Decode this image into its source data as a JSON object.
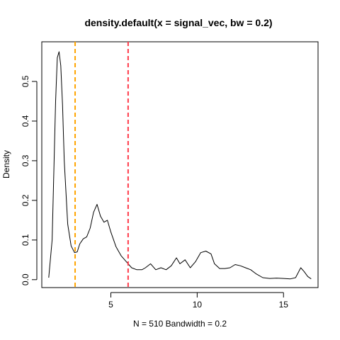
{
  "chart_data": {
    "type": "line",
    "title": "density.default(x = signal_vec, bw = 0.2)",
    "xlabel": "N = 510   Bandwidth = 0.2",
    "ylabel": "Density",
    "xlim": [
      1.0,
      17.0
    ],
    "ylim": [
      -0.02,
      0.6
    ],
    "x_ticks": [
      5,
      10,
      15
    ],
    "y_ticks": [
      0.0,
      0.1,
      0.2,
      0.3,
      0.4,
      0.5
    ],
    "y_tick_labels": [
      "0.0",
      "0.1",
      "0.2",
      "0.3",
      "0.4",
      "0.5"
    ],
    "grid": false,
    "series": [
      {
        "color": "#000000",
        "x": [
          1.4,
          1.6,
          1.8,
          1.9,
          2.0,
          2.1,
          2.2,
          2.3,
          2.5,
          2.7,
          2.9,
          3.05,
          3.2,
          3.4,
          3.6,
          3.8,
          4.0,
          4.2,
          4.4,
          4.6,
          4.8,
          5.0,
          5.3,
          5.6,
          5.9,
          6.2,
          6.5,
          6.8,
          7.0,
          7.3,
          7.6,
          7.9,
          8.2,
          8.5,
          8.8,
          9.0,
          9.3,
          9.6,
          9.9,
          10.2,
          10.5,
          10.8,
          11.0,
          11.3,
          11.6,
          11.9,
          12.2,
          12.5,
          12.8,
          13.1,
          13.4,
          13.8,
          14.2,
          14.6,
          15.0,
          15.4,
          15.7,
          16.0,
          16.2,
          16.4,
          16.6
        ],
        "y": [
          0.005,
          0.1,
          0.45,
          0.56,
          0.575,
          0.54,
          0.44,
          0.3,
          0.14,
          0.085,
          0.068,
          0.07,
          0.09,
          0.103,
          0.108,
          0.13,
          0.17,
          0.19,
          0.16,
          0.145,
          0.15,
          0.12,
          0.083,
          0.06,
          0.045,
          0.03,
          0.025,
          0.025,
          0.03,
          0.04,
          0.025,
          0.03,
          0.025,
          0.035,
          0.055,
          0.04,
          0.05,
          0.03,
          0.045,
          0.068,
          0.072,
          0.065,
          0.04,
          0.028,
          0.028,
          0.03,
          0.038,
          0.035,
          0.03,
          0.025,
          0.015,
          0.005,
          0.003,
          0.004,
          0.003,
          0.002,
          0.005,
          0.03,
          0.02,
          0.008,
          0.002
        ]
      }
    ],
    "vlines": [
      {
        "x": 2.93,
        "color": "#ffa500",
        "style": "dashed"
      },
      {
        "x": 6.0,
        "color": "#ff3b4a",
        "style": "dashed"
      }
    ]
  }
}
